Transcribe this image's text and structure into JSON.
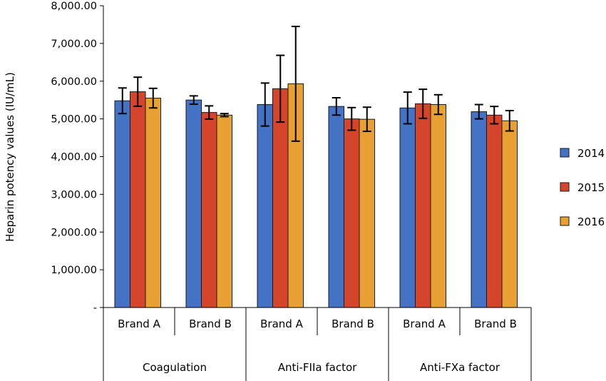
{
  "chart_data": {
    "type": "bar",
    "title": "",
    "ylabel": "Heparin potency values (IU/mL)",
    "xlabel": "",
    "ylim": [
      0,
      8000
    ],
    "yticks": [
      0,
      1000,
      2000,
      3000,
      4000,
      5000,
      6000,
      7000,
      8000
    ],
    "ytick_labels": [
      "-",
      "1,000.00",
      "2,000.00",
      "3,000.00",
      "4,000.00",
      "5,000.00",
      "6,000.00",
      "7,000.00",
      "8,000.00"
    ],
    "grid": false,
    "legend_position": "right",
    "groups": [
      "Coagulation",
      "Anti-FIIa factor",
      "Anti-FXa factor"
    ],
    "categories": [
      "Brand A",
      "Brand B",
      "Brand A",
      "Brand B",
      "Brand A",
      "Brand B"
    ],
    "series": [
      {
        "name": "2014",
        "color": "#4472c4",
        "values": [
          5480,
          5500,
          5380,
          5330,
          5290,
          5190
        ],
        "errors": [
          340,
          110,
          570,
          230,
          420,
          190
        ]
      },
      {
        "name": "2015",
        "color": "#d5452b",
        "values": [
          5720,
          5170,
          5800,
          5000,
          5400,
          5100
        ],
        "errors": [
          385,
          175,
          885,
          300,
          385,
          230
        ]
      },
      {
        "name": "2016",
        "color": "#e9a032",
        "values": [
          5550,
          5100,
          5930,
          4990,
          5380,
          4950
        ],
        "errors": [
          260,
          40,
          1520,
          320,
          260,
          270
        ]
      }
    ]
  }
}
